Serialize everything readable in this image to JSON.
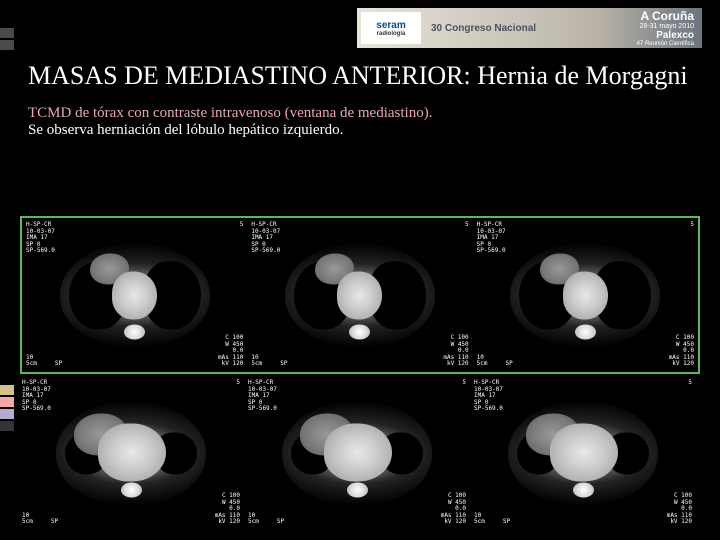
{
  "banner": {
    "logo_main": "seram",
    "logo_sub": "radiología",
    "congress": "30 Congreso Nacional",
    "city": "A Coruña",
    "dates": "28-31 mayo 2010",
    "venue": "Palexco",
    "subtitle": "47 Reunión Científica"
  },
  "title": "MASAS DE MEDIASTINO ANTERIOR: Hernia de Morgagni",
  "subtitle_line1": "TCMD de tórax con contraste intravenoso (ventana de mediastino).",
  "subtitle_line2": "Se observa herniación del lóbulo hepático izquierdo.",
  "sidebar_marks": [
    "#4a4a4a",
    "#4a4a4a"
  ],
  "sidebar_colors": [
    "#d4c388",
    "#f4a8a8",
    "#b8a8d4",
    "#333333"
  ],
  "scan_meta": {
    "tl": "H-SP-CR\n10-03-07\nIMA 17\nSP 0\nSP-569.0",
    "tr": "5",
    "bl": "10\n5cm     SP",
    "br": "C 100\nW 450\n0.0\nmAs 110\nkV 120"
  },
  "highlight_border_color": "#5cb85c",
  "colors": {
    "background": "#000000",
    "title_text": "#ffffff",
    "subtitle1_text": "#e8a5b8",
    "subtitle2_text": "#ffffff"
  },
  "font_sizes": {
    "title": 26,
    "subtitle": 15,
    "scan_meta": 6
  }
}
